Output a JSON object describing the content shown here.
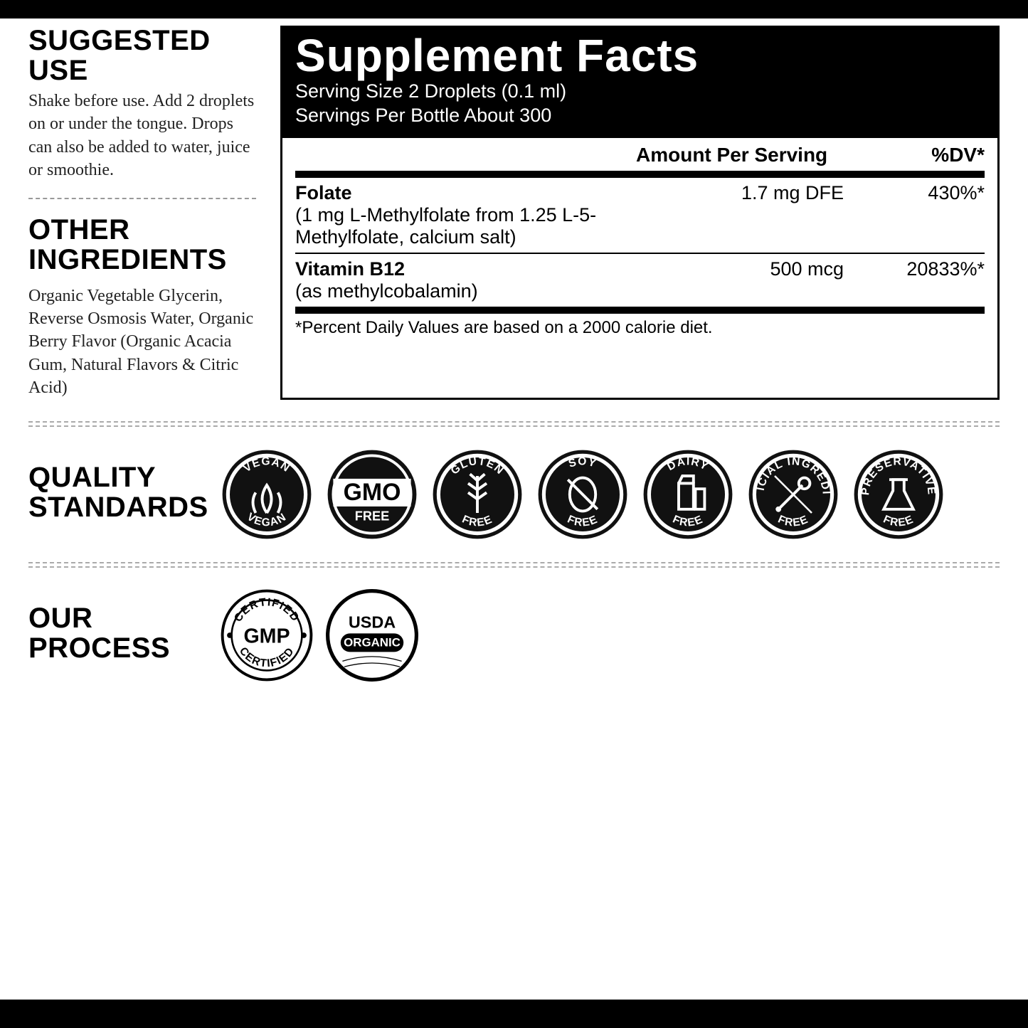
{
  "bars": {
    "color": "#000000",
    "top_height": 26,
    "bottom_height": 40
  },
  "left": {
    "suggested_use_h": "SUGGESTED USE",
    "suggested_use_body": "Shake before use. Add 2 droplets on or under the tongue. Drops can also be added to water, juice or smoothie.",
    "other_ingredients_h": "OTHER INGREDIENTS",
    "other_ingredients_body": "Organic Vegetable Glycerin, Reverse Osmosis Water, Organic Berry Flavor (Organic Acacia Gum, Natural Flavors & Citric Acid)"
  },
  "facts": {
    "title": "Supplement Facts",
    "serving_size": "Serving Size 2 Droplets (0.1 ml)",
    "servings_per": "Servings Per Bottle About 300",
    "col_amount": "Amount Per Serving",
    "col_dv": "%DV*",
    "rows": [
      {
        "name_bold": "Folate",
        "name_detail": "(1 mg L-Methylfolate from 1.25 L-5-Methylfolate, calcium salt)",
        "amount": "1.7 mg DFE",
        "dv": "430%*"
      },
      {
        "name_bold": "Vitamin B12",
        "name_detail": "(as methylcobalamin)",
        "amount": "500 mcg",
        "dv": "20833%*"
      }
    ],
    "footnote": "*Percent Daily Values are based on a 2000 calorie diet."
  },
  "quality": {
    "heading": "QUALITY STANDARDS",
    "badges": [
      {
        "top": "VEGAN",
        "bottom": "VEGAN",
        "icon": "leaf"
      },
      {
        "center_big": "GMO",
        "center_small": "FREE",
        "style": "white-band"
      },
      {
        "top": "GLUTEN",
        "bottom": "FREE",
        "icon": "wheat"
      },
      {
        "top": "SOY",
        "bottom": "FREE",
        "icon": "bean-cross"
      },
      {
        "top": "DAIRY",
        "bottom": "FREE",
        "icon": "milk"
      },
      {
        "top": "ARTIFICIAL INGREDIENTS",
        "bottom": "FREE",
        "icon": "dropper"
      },
      {
        "top": "PRESERVATIVE",
        "bottom": "FREE",
        "icon": "flask"
      }
    ]
  },
  "process": {
    "heading": "OUR PROCESS",
    "badges": [
      {
        "top": "CERTIFIED",
        "bottom": "CERTIFIED",
        "center": "GMP",
        "style": "outline-dots"
      },
      {
        "center_top": "USDA",
        "center_pill": "ORGANIC",
        "style": "outline"
      }
    ]
  },
  "style": {
    "heading_font_size": 40,
    "body_font_size": 24,
    "facts_title_size": 64,
    "badge_diameter": 130,
    "colors": {
      "black": "#000000",
      "white": "#ffffff",
      "dash": "#999999",
      "text": "#222222"
    }
  }
}
